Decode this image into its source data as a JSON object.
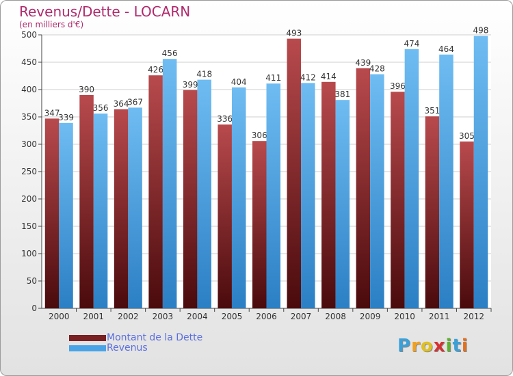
{
  "chart_data": {
    "type": "bar",
    "title": "Revenus/Dette - LOCARN",
    "subtitle": "(en milliers d'€)",
    "categories": [
      "2000",
      "2001",
      "2002",
      "2003",
      "2004",
      "2005",
      "2006",
      "2007",
      "2008",
      "2009",
      "2010",
      "2011",
      "2012"
    ],
    "series": [
      {
        "name": "Montant de la Dette",
        "color": "#7a1f22",
        "values": [
          347,
          390,
          364,
          426,
          399,
          336,
          306,
          493,
          414,
          439,
          396,
          351,
          305
        ]
      },
      {
        "name": "Revenus",
        "color": "#4aa3e6",
        "values": [
          339,
          356,
          367,
          456,
          418,
          404,
          411,
          412,
          381,
          428,
          474,
          464,
          498
        ]
      }
    ],
    "ylim": [
      0,
      500
    ],
    "yticks": [
      0,
      50,
      100,
      150,
      200,
      250,
      300,
      350,
      400,
      450,
      500
    ],
    "grid": true,
    "legend_position": "bottom-left"
  },
  "logo": {
    "letters": [
      "P",
      "r",
      "o",
      "x",
      "i",
      "t",
      "i"
    ],
    "colors": [
      "#3aa0d8",
      "#f0a020",
      "#e0c020",
      "#d83030",
      "#60b030",
      "#3aa0d8",
      "#e07020"
    ]
  }
}
